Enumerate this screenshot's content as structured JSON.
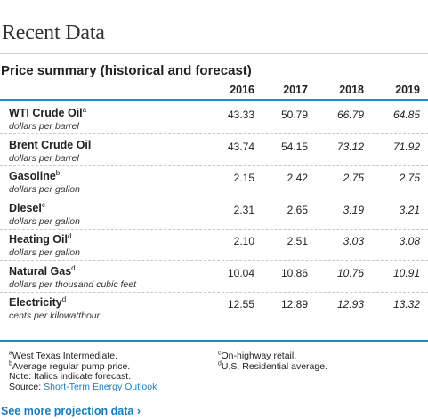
{
  "title": "Recent Data",
  "subtitle": "Price summary (historical and forecast)",
  "columns": [
    "2016",
    "2017",
    "2018",
    "2019"
  ],
  "rows": [
    {
      "name": "WTI Crude Oil",
      "note": "a",
      "unit": "dollars per barrel",
      "values": [
        "43.33",
        "50.79",
        "66.79",
        "64.85"
      ]
    },
    {
      "name": "Brent Crude Oil",
      "note": "",
      "unit": "dollars per barrel",
      "values": [
        "43.74",
        "54.15",
        "73.12",
        "71.92"
      ]
    },
    {
      "name": "Gasoline",
      "note": "b",
      "unit": "dollars per gallon",
      "values": [
        "2.15",
        "2.42",
        "2.75",
        "2.75"
      ]
    },
    {
      "name": "Diesel",
      "note": "c",
      "unit": "dollars per gallon",
      "values": [
        "2.31",
        "2.65",
        "3.19",
        "3.21"
      ]
    },
    {
      "name": "Heating Oil",
      "note": "d",
      "unit": "dollars per gallon",
      "values": [
        "2.10",
        "2.51",
        "3.03",
        "3.08"
      ]
    },
    {
      "name": "Natural Gas",
      "note": "d",
      "unit": "dollars per thousand cubic feet",
      "values": [
        "10.04",
        "10.86",
        "10.76",
        "10.91"
      ]
    },
    {
      "name": "Electricity",
      "note": "d",
      "unit": "cents per kilowatthour",
      "values": [
        "12.55",
        "12.89",
        "12.93",
        "13.32"
      ]
    }
  ],
  "footnotes_left": [
    {
      "sup": "a",
      "text": "West Texas Intermediate."
    },
    {
      "sup": "b",
      "text": "Average regular pump price."
    },
    {
      "sup": "",
      "text": "Note: Italics indicate forecast."
    }
  ],
  "source_label": "Source: ",
  "source_link": "Short-Term Energy Outlook",
  "footnotes_right": [
    {
      "sup": "c",
      "text": "On-highway retail."
    },
    {
      "sup": "d",
      "text": "U.S. Residential average."
    }
  ],
  "more_link": "See more projection data ›",
  "colors": {
    "accent": "#1a8bc9",
    "link": "#1a7bbf"
  }
}
